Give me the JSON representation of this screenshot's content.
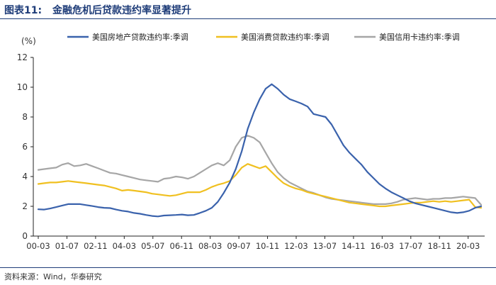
{
  "header": {
    "label": "图表11:",
    "title": "金融危机后贷款违约率显著提升"
  },
  "footer": {
    "source": "资料来源：Wind，华泰研究"
  },
  "chart_data": {
    "type": "line",
    "title": "",
    "xlabel": "",
    "ylabel": "(%)",
    "ylim": [
      0,
      12
    ],
    "yticks": [
      0,
      2,
      4,
      6,
      8,
      10,
      12
    ],
    "xticks": [
      "00-03",
      "01-07",
      "02-11",
      "04-03",
      "05-07",
      "06-11",
      "08-03",
      "09-07",
      "10-11",
      "12-03",
      "13-07",
      "14-11",
      "16-03",
      "17-07",
      "18-11",
      "20-03"
    ],
    "grid": false,
    "legend_position": "top",
    "x_unit": "quarter index from 2000Q1",
    "series": [
      {
        "name": "美国房地产贷款违约率:季调",
        "color": "#3a62ac",
        "values": [
          1.8,
          1.78,
          1.85,
          1.95,
          2.05,
          2.15,
          2.15,
          2.15,
          2.08,
          2.02,
          1.95,
          1.9,
          1.88,
          1.78,
          1.7,
          1.65,
          1.55,
          1.5,
          1.42,
          1.35,
          1.32,
          1.38,
          1.4,
          1.42,
          1.45,
          1.4,
          1.42,
          1.55,
          1.7,
          1.9,
          2.3,
          2.9,
          3.6,
          4.5,
          5.7,
          7.2,
          8.3,
          9.2,
          9.9,
          10.2,
          9.9,
          9.5,
          9.2,
          9.05,
          8.9,
          8.7,
          8.2,
          8.1,
          8.0,
          7.5,
          6.8,
          6.1,
          5.6,
          5.2,
          4.8,
          4.3,
          3.9,
          3.5,
          3.2,
          2.95,
          2.75,
          2.55,
          2.35,
          2.2,
          2.1,
          2.0,
          1.9,
          1.8,
          1.7,
          1.6,
          1.55,
          1.6,
          1.7,
          1.9,
          2.0
        ]
      },
      {
        "name": "美国消费贷款违约率:季调",
        "color": "#f0c020",
        "values": [
          3.5,
          3.55,
          3.6,
          3.6,
          3.65,
          3.7,
          3.65,
          3.6,
          3.55,
          3.5,
          3.45,
          3.4,
          3.3,
          3.2,
          3.05,
          3.1,
          3.05,
          3.0,
          2.95,
          2.85,
          2.8,
          2.75,
          2.7,
          2.75,
          2.85,
          2.95,
          2.95,
          2.95,
          3.1,
          3.3,
          3.45,
          3.55,
          3.7,
          4.1,
          4.6,
          4.85,
          4.7,
          4.55,
          4.7,
          4.3,
          3.9,
          3.55,
          3.35,
          3.2,
          3.1,
          2.95,
          2.85,
          2.75,
          2.65,
          2.55,
          2.45,
          2.35,
          2.25,
          2.2,
          2.15,
          2.1,
          2.05,
          2.0,
          2.0,
          2.05,
          2.1,
          2.15,
          2.2,
          2.25,
          2.25,
          2.3,
          2.35,
          2.3,
          2.35,
          2.3,
          2.35,
          2.4,
          2.45,
          1.95,
          1.9
        ]
      },
      {
        "name": "美国信用卡违约率:季调",
        "color": "#a6a6a6",
        "values": [
          4.45,
          4.5,
          4.55,
          4.6,
          4.8,
          4.9,
          4.7,
          4.75,
          4.85,
          4.7,
          4.55,
          4.4,
          4.25,
          4.2,
          4.1,
          4.0,
          3.9,
          3.8,
          3.75,
          3.7,
          3.65,
          3.85,
          3.9,
          4.0,
          3.95,
          3.85,
          4.0,
          4.25,
          4.5,
          4.75,
          4.9,
          4.75,
          5.1,
          6.0,
          6.6,
          6.75,
          6.6,
          6.3,
          5.6,
          4.9,
          4.3,
          3.9,
          3.6,
          3.4,
          3.2,
          3.0,
          2.9,
          2.75,
          2.6,
          2.5,
          2.45,
          2.4,
          2.35,
          2.3,
          2.25,
          2.2,
          2.15,
          2.15,
          2.15,
          2.2,
          2.3,
          2.45,
          2.5,
          2.55,
          2.5,
          2.45,
          2.5,
          2.5,
          2.55,
          2.55,
          2.6,
          2.65,
          2.6,
          2.55,
          2.1
        ]
      }
    ]
  }
}
